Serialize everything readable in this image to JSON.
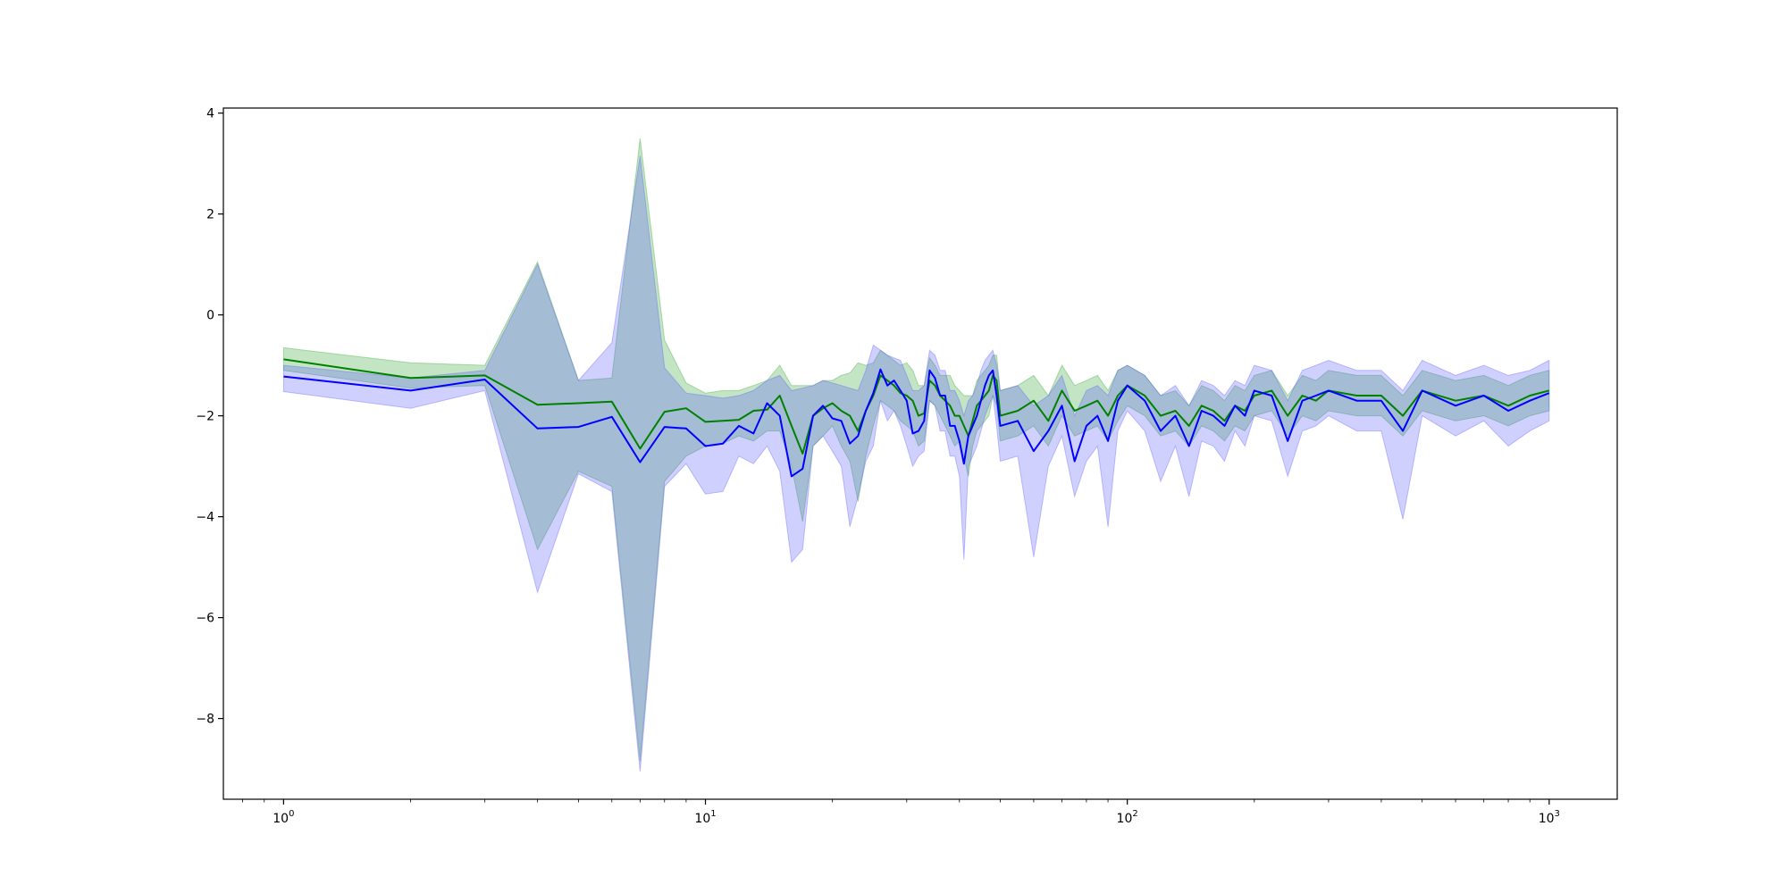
{
  "chart_data": {
    "type": "line",
    "title": "",
    "xlabel": "",
    "ylabel": "",
    "xscale": "log",
    "xlim": [
      0.72,
      1450
    ],
    "ylim": [
      -9.6,
      4.1
    ],
    "grid": false,
    "legend": "none",
    "x_ticks": [
      {
        "value": 1,
        "base": "10",
        "exp": "0"
      },
      {
        "value": 10,
        "base": "10",
        "exp": "1"
      },
      {
        "value": 100,
        "base": "10",
        "exp": "2"
      },
      {
        "value": 1000,
        "base": "10",
        "exp": "3"
      }
    ],
    "y_ticks": [
      {
        "value": 4,
        "label": "4"
      },
      {
        "value": 2,
        "label": "2"
      },
      {
        "value": 0,
        "label": "0"
      },
      {
        "value": -2,
        "label": "−2"
      },
      {
        "value": -4,
        "label": "−4"
      },
      {
        "value": -6,
        "label": "−6"
      },
      {
        "value": -8,
        "label": "−8"
      }
    ],
    "series": [
      {
        "color": "#008000",
        "band_color": "#2ca02c",
        "x": [
          1,
          2,
          3,
          4,
          5,
          6,
          7,
          8,
          9,
          10,
          11,
          12,
          13,
          14,
          15,
          16,
          17,
          18,
          19,
          20,
          21,
          22,
          23,
          24,
          25,
          26,
          27,
          28,
          29,
          30,
          31,
          32,
          33,
          34,
          35,
          36,
          37,
          38,
          39,
          40,
          41,
          42,
          43,
          44,
          45,
          46,
          47,
          48,
          49,
          50,
          55,
          60,
          65,
          70,
          75,
          80,
          85,
          90,
          95,
          100,
          110,
          120,
          130,
          140,
          150,
          160,
          170,
          180,
          190,
          200,
          220,
          240,
          260,
          280,
          300,
          350,
          400,
          450,
          500,
          600,
          700,
          800,
          900,
          1000
        ],
        "y": [
          -0.88,
          -1.25,
          -1.2,
          -1.78,
          -1.75,
          -1.72,
          -2.65,
          -1.92,
          -1.85,
          -2.12,
          -2.1,
          -2.08,
          -1.9,
          -1.88,
          -1.6,
          -2.2,
          -2.75,
          -2.0,
          -1.85,
          -1.75,
          -1.9,
          -2.0,
          -2.3,
          -1.9,
          -1.6,
          -1.2,
          -1.3,
          -1.4,
          -1.55,
          -1.6,
          -1.7,
          -2.0,
          -1.95,
          -1.3,
          -1.4,
          -1.6,
          -1.7,
          -1.8,
          -2.0,
          -2.0,
          -2.2,
          -2.4,
          -2.1,
          -1.8,
          -1.7,
          -1.6,
          -1.5,
          -1.2,
          -1.3,
          -2.0,
          -1.9,
          -1.7,
          -2.1,
          -1.5,
          -1.9,
          -1.8,
          -1.7,
          -2.0,
          -1.6,
          -1.4,
          -1.6,
          -2.0,
          -1.9,
          -2.2,
          -1.8,
          -1.9,
          -2.1,
          -1.8,
          -1.9,
          -1.6,
          -1.5,
          -2.0,
          -1.6,
          -1.7,
          -1.5,
          -1.6,
          -1.6,
          -2.0,
          -1.5,
          -1.7,
          -1.6,
          -1.8,
          -1.6,
          -1.5
        ],
        "y_low": [
          -1.1,
          -1.45,
          -1.4,
          -4.65,
          -3.1,
          -3.4,
          -8.85,
          -3.3,
          -2.8,
          -2.6,
          -2.55,
          -2.4,
          -2.5,
          -2.3,
          -2.3,
          -3.0,
          -4.1,
          -2.6,
          -2.4,
          -2.2,
          -2.6,
          -2.9,
          -3.7,
          -2.8,
          -2.2,
          -1.7,
          -1.8,
          -1.9,
          -2.1,
          -2.2,
          -2.3,
          -2.6,
          -2.5,
          -1.7,
          -1.8,
          -2.0,
          -2.2,
          -2.4,
          -2.6,
          -2.5,
          -2.8,
          -3.2,
          -2.6,
          -2.3,
          -2.2,
          -2.1,
          -2.0,
          -1.6,
          -1.8,
          -2.5,
          -2.4,
          -2.2,
          -2.6,
          -2.0,
          -2.4,
          -2.3,
          -2.2,
          -2.5,
          -2.1,
          -1.8,
          -2.0,
          -2.4,
          -2.3,
          -2.6,
          -2.2,
          -2.3,
          -2.5,
          -2.2,
          -2.3,
          -2.0,
          -1.9,
          -2.4,
          -2.0,
          -2.1,
          -1.9,
          -2.0,
          -2.0,
          -2.4,
          -1.9,
          -2.1,
          -2.0,
          -2.2,
          -2.0,
          -1.9
        ],
        "y_high": [
          -0.65,
          -0.95,
          -1.0,
          1.05,
          -1.3,
          -1.25,
          3.5,
          -0.5,
          -1.35,
          -1.55,
          -1.5,
          -1.5,
          -1.4,
          -1.3,
          -1.0,
          -1.4,
          -1.4,
          -1.4,
          -1.3,
          -1.3,
          -1.2,
          -1.15,
          -0.95,
          -1.0,
          -0.95,
          -0.7,
          -0.8,
          -0.9,
          -1.0,
          -0.95,
          -1.1,
          -1.4,
          -1.4,
          -0.85,
          -1.0,
          -1.2,
          -1.2,
          -1.2,
          -1.4,
          -1.5,
          -1.6,
          -1.6,
          -1.6,
          -1.3,
          -1.2,
          -1.1,
          -1.0,
          -0.8,
          -0.8,
          -1.5,
          -1.4,
          -1.2,
          -1.6,
          -1.0,
          -1.4,
          -1.3,
          -1.2,
          -1.5,
          -1.1,
          -1.0,
          -1.2,
          -1.6,
          -1.5,
          -1.8,
          -1.4,
          -1.5,
          -1.7,
          -1.4,
          -1.5,
          -1.2,
          -1.1,
          -1.6,
          -1.2,
          -1.3,
          -1.1,
          -1.2,
          -1.2,
          -1.6,
          -1.1,
          -1.3,
          -1.2,
          -1.4,
          -1.2,
          -1.1
        ]
      },
      {
        "color": "#0000ff",
        "band_color": "#5555ff",
        "x": [
          1,
          2,
          3,
          4,
          5,
          6,
          7,
          8,
          9,
          10,
          11,
          12,
          13,
          14,
          15,
          16,
          17,
          18,
          19,
          20,
          21,
          22,
          23,
          24,
          25,
          26,
          27,
          28,
          29,
          30,
          31,
          32,
          33,
          34,
          35,
          36,
          37,
          38,
          39,
          40,
          41,
          42,
          43,
          44,
          45,
          46,
          47,
          48,
          49,
          50,
          55,
          60,
          65,
          70,
          75,
          80,
          85,
          90,
          95,
          100,
          110,
          120,
          130,
          140,
          150,
          160,
          170,
          180,
          190,
          200,
          220,
          240,
          260,
          280,
          300,
          350,
          400,
          450,
          500,
          600,
          700,
          800,
          900,
          1000
        ],
        "y": [
          -1.22,
          -1.5,
          -1.28,
          -2.25,
          -2.22,
          -2.02,
          -2.92,
          -2.22,
          -2.25,
          -2.6,
          -2.55,
          -2.2,
          -2.35,
          -1.75,
          -2.0,
          -3.2,
          -3.05,
          -2.0,
          -1.8,
          -2.05,
          -2.1,
          -2.55,
          -2.4,
          -1.9,
          -1.55,
          -1.08,
          -1.4,
          -1.3,
          -1.5,
          -1.7,
          -2.35,
          -2.3,
          -2.1,
          -1.1,
          -1.25,
          -1.6,
          -1.6,
          -2.2,
          -2.2,
          -2.5,
          -2.95,
          -2.4,
          -2.2,
          -2.0,
          -1.7,
          -1.4,
          -1.2,
          -1.1,
          -1.6,
          -2.2,
          -2.1,
          -2.7,
          -2.3,
          -1.8,
          -2.9,
          -2.2,
          -2.0,
          -2.5,
          -1.7,
          -1.4,
          -1.7,
          -2.3,
          -2.0,
          -2.6,
          -1.9,
          -2.0,
          -2.2,
          -1.8,
          -2.0,
          -1.5,
          -1.6,
          -2.5,
          -1.7,
          -1.6,
          -1.5,
          -1.7,
          -1.7,
          -2.3,
          -1.5,
          -1.8,
          -1.6,
          -1.9,
          -1.7,
          -1.55
        ],
        "y_low": [
          -1.52,
          -1.85,
          -1.5,
          -5.5,
          -3.15,
          -3.5,
          -9.05,
          -3.4,
          -2.95,
          -3.55,
          -3.5,
          -2.8,
          -2.95,
          -2.6,
          -3.1,
          -4.9,
          -4.65,
          -2.6,
          -2.4,
          -2.7,
          -3.0,
          -4.2,
          -3.6,
          -2.9,
          -2.6,
          -1.7,
          -2.1,
          -1.9,
          -2.2,
          -2.6,
          -3.0,
          -2.8,
          -2.7,
          -1.7,
          -1.8,
          -2.3,
          -2.3,
          -2.8,
          -2.8,
          -3.2,
          -4.85,
          -3.0,
          -2.8,
          -2.6,
          -2.3,
          -2.0,
          -1.8,
          -1.6,
          -2.2,
          -2.9,
          -2.8,
          -4.8,
          -3.0,
          -2.4,
          -3.6,
          -2.9,
          -2.6,
          -4.2,
          -2.3,
          -1.9,
          -2.3,
          -3.3,
          -2.6,
          -3.6,
          -2.5,
          -2.6,
          -2.9,
          -2.3,
          -2.6,
          -2.0,
          -2.1,
          -3.2,
          -2.3,
          -2.2,
          -2.0,
          -2.3,
          -2.3,
          -4.05,
          -2.0,
          -2.4,
          -2.1,
          -2.6,
          -2.3,
          -2.1
        ],
        "y_high": [
          -1.0,
          -1.25,
          -1.1,
          1.0,
          -1.3,
          -0.55,
          3.15,
          -1.05,
          -1.55,
          -1.6,
          -1.65,
          -1.6,
          -1.5,
          -1.3,
          -1.2,
          -1.5,
          -1.45,
          -1.4,
          -1.3,
          -1.35,
          -1.4,
          -1.45,
          -1.5,
          -1.1,
          -0.6,
          -0.7,
          -0.8,
          -0.85,
          -0.9,
          -1.2,
          -1.5,
          -1.5,
          -1.4,
          -0.7,
          -0.8,
          -1.1,
          -1.1,
          -1.5,
          -1.5,
          -1.7,
          -2.0,
          -1.7,
          -1.6,
          -1.4,
          -1.1,
          -0.9,
          -0.8,
          -0.7,
          -1.0,
          -1.5,
          -1.4,
          -1.8,
          -1.6,
          -1.2,
          -2.0,
          -1.5,
          -1.4,
          -1.6,
          -1.1,
          -1.0,
          -1.2,
          -1.6,
          -1.4,
          -1.8,
          -1.3,
          -1.4,
          -1.6,
          -1.3,
          -1.4,
          -1.0,
          -1.1,
          -1.7,
          -1.1,
          -1.0,
          -0.9,
          -1.1,
          -1.1,
          -1.5,
          -0.9,
          -1.2,
          -1.0,
          -1.2,
          -1.1,
          -0.9
        ]
      }
    ]
  }
}
